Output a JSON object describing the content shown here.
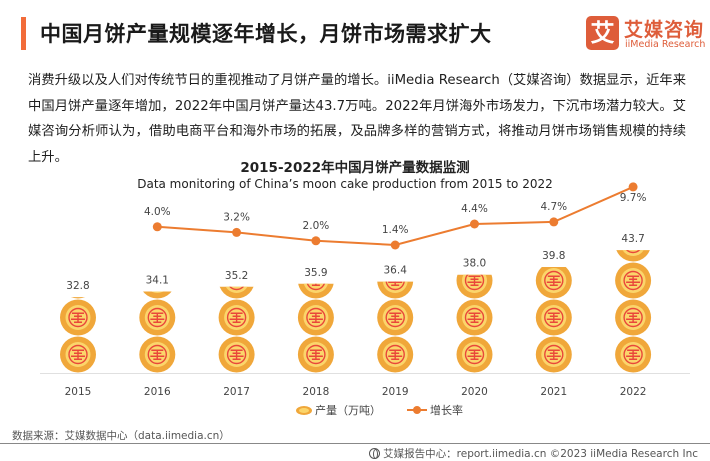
{
  "header": {
    "title": "中国月饼产量规模逐年增长，月饼市场需求扩大",
    "logo_mark": "艾",
    "logo_cn": "艾媒咨询",
    "logo_en": "iiMedia Research"
  },
  "intro": "消费升级以及人们对传统节日的重视推动了月饼产量的增长。iiMedia Research（艾媒咨询）数据显示，近年来中国月饼产量逐年增加，2022年中国月饼产量达43.7万吨。2022年月饼海外市场发力，下沉市场潜力较大。艾媒咨询分析师认为，借助电商平台和海外市场的拓展，及品牌多样的营销方式，将推动月饼市场销售规模的持续上升。",
  "chart_data": {
    "type": "bar",
    "title": "2015-2022年中国月饼产量数据监测",
    "subtitle": "Data monitoring of China’s moon cake production from 2015 to 2022",
    "categories": [
      "2015",
      "2016",
      "2017",
      "2018",
      "2019",
      "2020",
      "2021",
      "2022"
    ],
    "series": [
      {
        "name": "产量（万吨）",
        "kind": "pictograph-bar",
        "icon": "mooncake-icon",
        "values": [
          32.8,
          34.1,
          35.2,
          35.9,
          36.4,
          38.0,
          39.8,
          43.7
        ],
        "labels": [
          "32.8",
          "34.1",
          "35.2",
          "35.9",
          "36.4",
          "38.0",
          "39.8",
          "43.7"
        ]
      },
      {
        "name": "增长率",
        "kind": "line",
        "values": [
          null,
          4.0,
          3.2,
          2.0,
          1.4,
          4.4,
          4.7,
          9.7
        ],
        "labels": [
          "",
          "4.0%",
          "3.2%",
          "2.0%",
          "1.4%",
          "4.4%",
          "4.7%",
          "9.7%"
        ],
        "unit": "%"
      }
    ],
    "legend": [
      "产量（万吨）",
      "增长率"
    ],
    "legend_position": "bottom",
    "grid": false,
    "colors": {
      "cake_outer": "#f0a73a",
      "cake_inner": "#fbd56b",
      "cake_pattern": "#e9473a",
      "line": "#ec7c30"
    }
  },
  "footer": {
    "source": "数据来源：艾媒数据中心（data.iimedia.cn）",
    "credit": "艾媒报告中心：report.iimedia.cn  ©2023  iiMedia Research  Inc"
  }
}
